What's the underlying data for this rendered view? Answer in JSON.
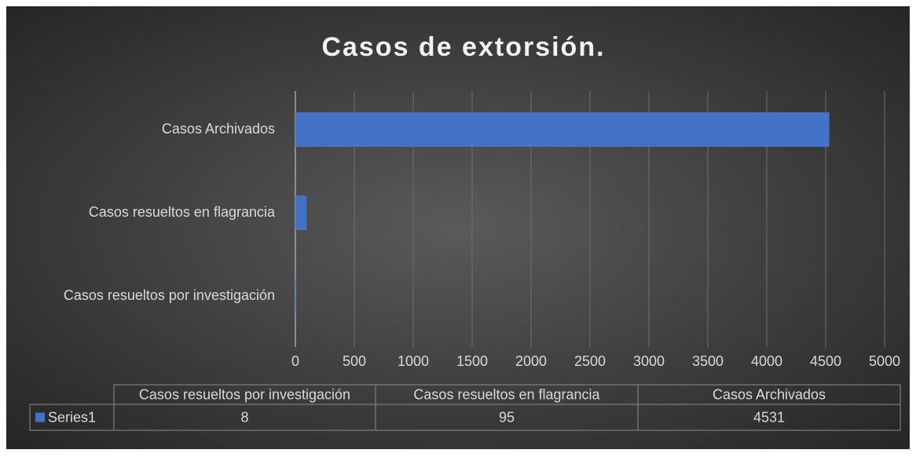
{
  "chart_data": {
    "type": "bar",
    "orientation": "horizontal",
    "title": "Casos de extorsión.",
    "categories": [
      "Casos resueltos por investigación",
      "Casos resueltos en flagrancia",
      "Casos Archivados"
    ],
    "series": [
      {
        "name": "Series1",
        "color": "#4472c4",
        "values": [
          8,
          95,
          4531
        ]
      }
    ],
    "xlim": [
      0,
      5000
    ],
    "xticks": [
      0,
      500,
      1000,
      1500,
      2000,
      2500,
      3000,
      3500,
      4000,
      4500,
      5000
    ],
    "grid": true,
    "data_table": true
  }
}
